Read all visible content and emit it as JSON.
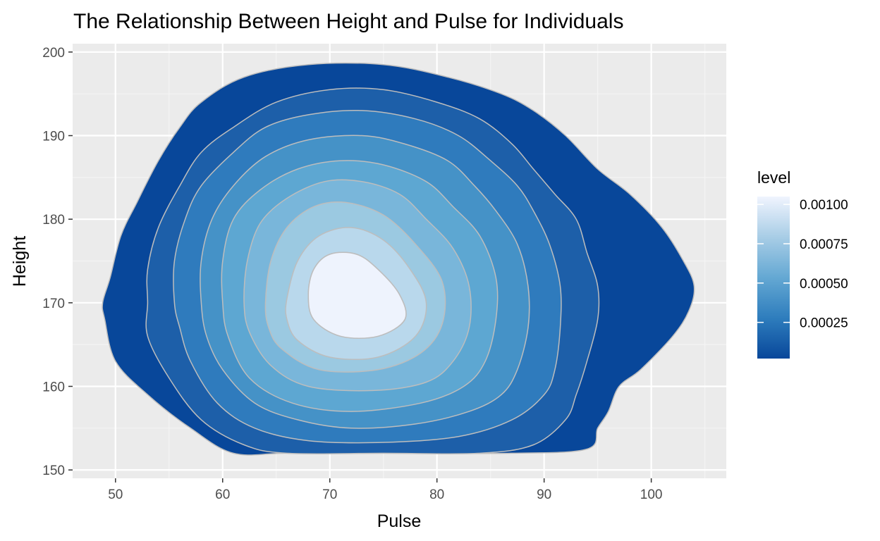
{
  "chart_data": {
    "type": "filled-density-contour",
    "title": "The Relationship Between Height and Pulse for Individuals",
    "xlabel": "Pulse",
    "ylabel": "Height",
    "xlim": [
      46,
      107
    ],
    "ylim": [
      149,
      201
    ],
    "x_ticks": [
      50,
      60,
      70,
      80,
      90,
      100
    ],
    "y_ticks": [
      150,
      160,
      170,
      180,
      190,
      200
    ],
    "x_tick_labels": [
      "50",
      "60",
      "70",
      "80",
      "90",
      "100"
    ],
    "y_tick_labels": [
      "150",
      "160",
      "170",
      "180",
      "190",
      "200"
    ],
    "grid": true,
    "density_peak": {
      "x": 71,
      "y": 171
    },
    "colors": {
      "panel_bg": "#ebebeb",
      "grid_major": "#ffffff",
      "grid_minor": "#f4f4f4",
      "contour_line": "#bdbdbd",
      "level_fills": [
        "#08479a",
        "#1d5fa9",
        "#2f7bbd",
        "#4592c7",
        "#5da7d2",
        "#79b6da",
        "#9bc9e1",
        "#b9d8ec",
        "#d4e4f4",
        "#eef3fd"
      ]
    },
    "contour_levels": [
      {
        "points": [
          [
            49.0,
            168
          ],
          [
            48.8,
            170
          ],
          [
            49.5,
            173
          ],
          [
            50.5,
            178
          ],
          [
            52,
            182
          ],
          [
            54,
            187
          ],
          [
            56,
            191
          ],
          [
            58,
            194
          ],
          [
            62,
            197
          ],
          [
            68,
            198.5
          ],
          [
            75,
            198.5
          ],
          [
            81,
            197
          ],
          [
            86,
            195
          ],
          [
            89,
            193
          ],
          [
            92,
            190
          ],
          [
            95,
            186
          ],
          [
            98,
            183
          ],
          [
            101,
            179
          ],
          [
            103,
            175
          ],
          [
            104,
            172
          ],
          [
            103.5,
            169
          ],
          [
            102,
            166
          ],
          [
            99,
            162
          ],
          [
            97,
            160
          ],
          [
            96,
            157
          ],
          [
            95,
            155
          ],
          [
            94,
            152.5
          ],
          [
            87,
            152
          ],
          [
            75,
            152
          ],
          [
            66,
            152
          ],
          [
            61,
            152
          ],
          [
            57,
            155
          ],
          [
            53,
            159
          ],
          [
            50,
            163
          ]
        ]
      },
      {
        "points": [
          [
            53,
            170
          ],
          [
            53,
            174
          ],
          [
            54,
            179
          ],
          [
            56,
            184
          ],
          [
            58,
            188
          ],
          [
            61,
            191
          ],
          [
            65,
            194
          ],
          [
            70,
            195.5
          ],
          [
            75,
            195.5
          ],
          [
            80,
            194
          ],
          [
            84,
            192
          ],
          [
            87,
            189
          ],
          [
            89,
            186
          ],
          [
            91,
            183
          ],
          [
            93,
            180
          ],
          [
            94,
            176
          ],
          [
            95,
            172
          ],
          [
            95,
            168
          ],
          [
            94,
            163
          ],
          [
            93,
            159
          ],
          [
            92,
            156
          ],
          [
            89,
            153
          ],
          [
            84,
            152
          ],
          [
            75,
            152
          ],
          [
            66,
            152
          ],
          [
            62,
            153
          ],
          [
            58,
            156
          ],
          [
            55,
            161
          ],
          [
            53,
            166
          ]
        ]
      },
      {
        "points": [
          [
            55.5,
            170
          ],
          [
            55.5,
            175
          ],
          [
            56.5,
            180
          ],
          [
            58,
            184
          ],
          [
            61,
            188
          ],
          [
            64,
            191
          ],
          [
            68,
            192.5
          ],
          [
            73,
            193
          ],
          [
            78,
            192
          ],
          [
            82,
            190
          ],
          [
            85,
            187
          ],
          [
            87.5,
            184
          ],
          [
            89,
            181
          ],
          [
            90.5,
            177
          ],
          [
            91.5,
            172
          ],
          [
            91.5,
            167
          ],
          [
            91,
            162
          ],
          [
            90,
            159
          ],
          [
            87,
            156
          ],
          [
            82,
            154
          ],
          [
            75,
            153.3
          ],
          [
            68,
            153.5
          ],
          [
            63,
            155
          ],
          [
            59.5,
            158
          ],
          [
            57,
            163
          ],
          [
            56,
            167
          ]
        ]
      },
      {
        "points": [
          [
            58,
            170
          ],
          [
            58,
            175
          ],
          [
            59,
            180
          ],
          [
            61,
            184
          ],
          [
            64,
            187.5
          ],
          [
            68,
            189.5
          ],
          [
            73,
            190
          ],
          [
            77,
            189
          ],
          [
            81,
            187
          ],
          [
            83.5,
            184
          ],
          [
            85.5,
            181
          ],
          [
            87.5,
            177
          ],
          [
            88.5,
            172
          ],
          [
            88.5,
            167
          ],
          [
            87.5,
            162
          ],
          [
            86,
            159
          ],
          [
            83,
            157
          ],
          [
            78,
            155.5
          ],
          [
            72,
            155
          ],
          [
            67,
            156
          ],
          [
            63,
            158
          ],
          [
            60,
            162
          ],
          [
            58.5,
            166
          ]
        ]
      },
      {
        "points": [
          [
            60,
            170
          ],
          [
            60,
            175
          ],
          [
            61,
            180
          ],
          [
            63.5,
            183.5
          ],
          [
            67,
            186
          ],
          [
            71,
            187
          ],
          [
            75,
            186.5
          ],
          [
            79,
            184.5
          ],
          [
            81.5,
            181.5
          ],
          [
            84,
            178
          ],
          [
            85.5,
            173
          ],
          [
            85.5,
            168
          ],
          [
            84.5,
            163
          ],
          [
            82.5,
            160
          ],
          [
            78.5,
            158
          ],
          [
            72,
            157
          ],
          [
            66.5,
            158
          ],
          [
            62.5,
            161
          ],
          [
            60.5,
            166
          ]
        ]
      },
      {
        "points": [
          [
            62,
            170
          ],
          [
            62.3,
            175
          ],
          [
            63.5,
            179.5
          ],
          [
            66,
            182.5
          ],
          [
            69.5,
            184.5
          ],
          [
            73,
            184.5
          ],
          [
            76.5,
            183
          ],
          [
            79,
            180
          ],
          [
            81.5,
            176.5
          ],
          [
            83,
            172
          ],
          [
            83,
            167
          ],
          [
            81.5,
            163
          ],
          [
            79,
            160.5
          ],
          [
            74,
            159.5
          ],
          [
            68,
            160
          ],
          [
            64.5,
            162.5
          ],
          [
            62.5,
            166.5
          ]
        ]
      },
      {
        "points": [
          [
            64,
            170
          ],
          [
            64.5,
            175
          ],
          [
            66,
            179
          ],
          [
            68.5,
            181.5
          ],
          [
            71.5,
            182
          ],
          [
            75,
            180.5
          ],
          [
            78,
            177
          ],
          [
            80.5,
            172.5
          ],
          [
            80.5,
            167.5
          ],
          [
            78.5,
            164
          ],
          [
            74.5,
            162
          ],
          [
            69,
            162
          ],
          [
            65.5,
            164.5
          ],
          [
            64.3,
            167
          ]
        ]
      },
      {
        "points": [
          [
            66,
            170.5
          ],
          [
            67,
            175
          ],
          [
            69,
            178
          ],
          [
            72,
            179
          ],
          [
            75,
            177.5
          ],
          [
            77.5,
            174
          ],
          [
            79,
            170
          ],
          [
            78,
            166
          ],
          [
            74.5,
            163.5
          ],
          [
            70,
            163.5
          ],
          [
            67,
            165.5
          ],
          [
            66,
            168
          ]
        ]
      },
      {
        "points": [
          [
            68,
            171
          ],
          [
            68.5,
            174
          ],
          [
            70,
            175.8
          ],
          [
            72.5,
            175.8
          ],
          [
            74.5,
            174
          ],
          [
            76.5,
            171
          ],
          [
            77,
            168
          ],
          [
            74.5,
            166
          ],
          [
            71,
            166
          ],
          [
            68.5,
            168
          ]
        ]
      }
    ],
    "legend": {
      "title": "level",
      "position": "right",
      "color_min": 2e-05,
      "color_max": 0.00105,
      "labels": [
        "0.00025",
        "0.00050",
        "0.00075",
        "0.00100"
      ],
      "values": [
        0.00025,
        0.0005,
        0.00075,
        0.001
      ],
      "gradient": [
        "#08479a",
        "#2e7dbd",
        "#64a8d3",
        "#a8cde6",
        "#f0f4fe"
      ]
    }
  }
}
